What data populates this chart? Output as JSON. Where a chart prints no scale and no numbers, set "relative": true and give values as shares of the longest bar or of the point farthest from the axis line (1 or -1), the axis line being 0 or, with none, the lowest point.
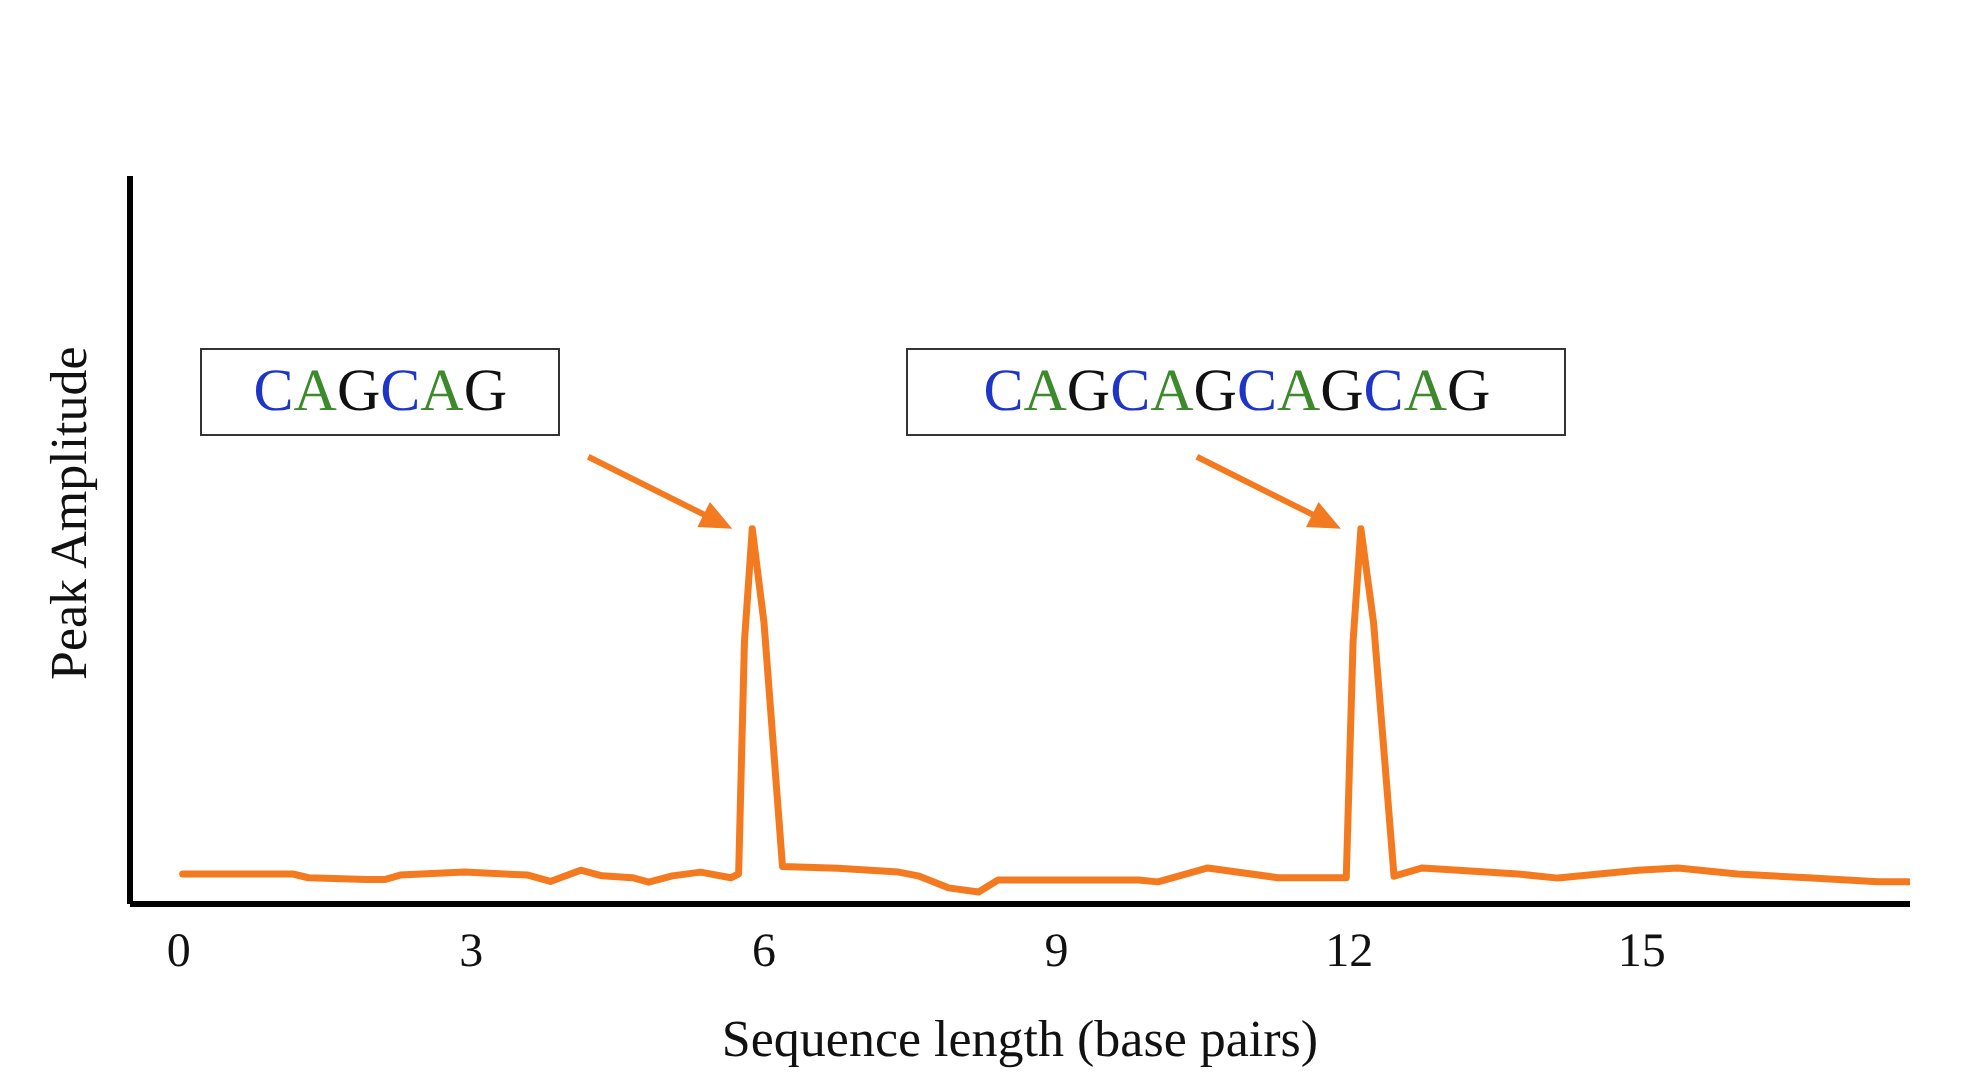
{
  "chart_data": {
    "type": "line",
    "relative": true,
    "xlabel": "Sequence length (base pairs)",
    "ylabel": "Peak Amplitude",
    "xlim": [
      -0.5,
      17.75
    ],
    "xticks": [
      0,
      3,
      6,
      9,
      12,
      15
    ],
    "marker": "none",
    "line_style": "solid",
    "legend": false,
    "grid": false,
    "x": [
      0.04,
      1.17,
      1.33,
      1.93,
      2.11,
      2.27,
      2.93,
      3.58,
      3.81,
      4.12,
      4.34,
      4.65,
      4.82,
      5.06,
      5.35,
      5.66,
      5.74,
      5.8,
      5.88,
      6.0,
      6.19,
      6.76,
      7.38,
      7.58,
      7.89,
      8.2,
      8.4,
      9.22,
      9.84,
      10.04,
      10.55,
      11.27,
      11.97,
      12.04,
      12.12,
      12.25,
      12.46,
      12.75,
      13.73,
      14.14,
      14.96,
      15.37,
      15.98,
      16.7,
      17.42,
      17.73
    ],
    "series": [
      {
        "color": "#f47a20",
        "values": [
          0.08,
          0.08,
          0.07,
          0.065,
          0.065,
          0.077,
          0.085,
          0.077,
          0.06,
          0.09,
          0.075,
          0.07,
          0.058,
          0.075,
          0.085,
          0.07,
          0.08,
          0.7,
          1.0,
          0.75,
          0.1,
          0.095,
          0.085,
          0.075,
          0.043,
          0.032,
          0.064,
          0.064,
          0.064,
          0.059,
          0.096,
          0.07,
          0.07,
          0.7,
          1.0,
          0.75,
          0.074,
          0.096,
          0.08,
          0.069,
          0.09,
          0.096,
          0.08,
          0.07,
          0.059,
          0.059
        ]
      }
    ],
    "annotations": [
      "CAGCAG",
      "CAGCAGCAGCAG"
    ]
  }
}
